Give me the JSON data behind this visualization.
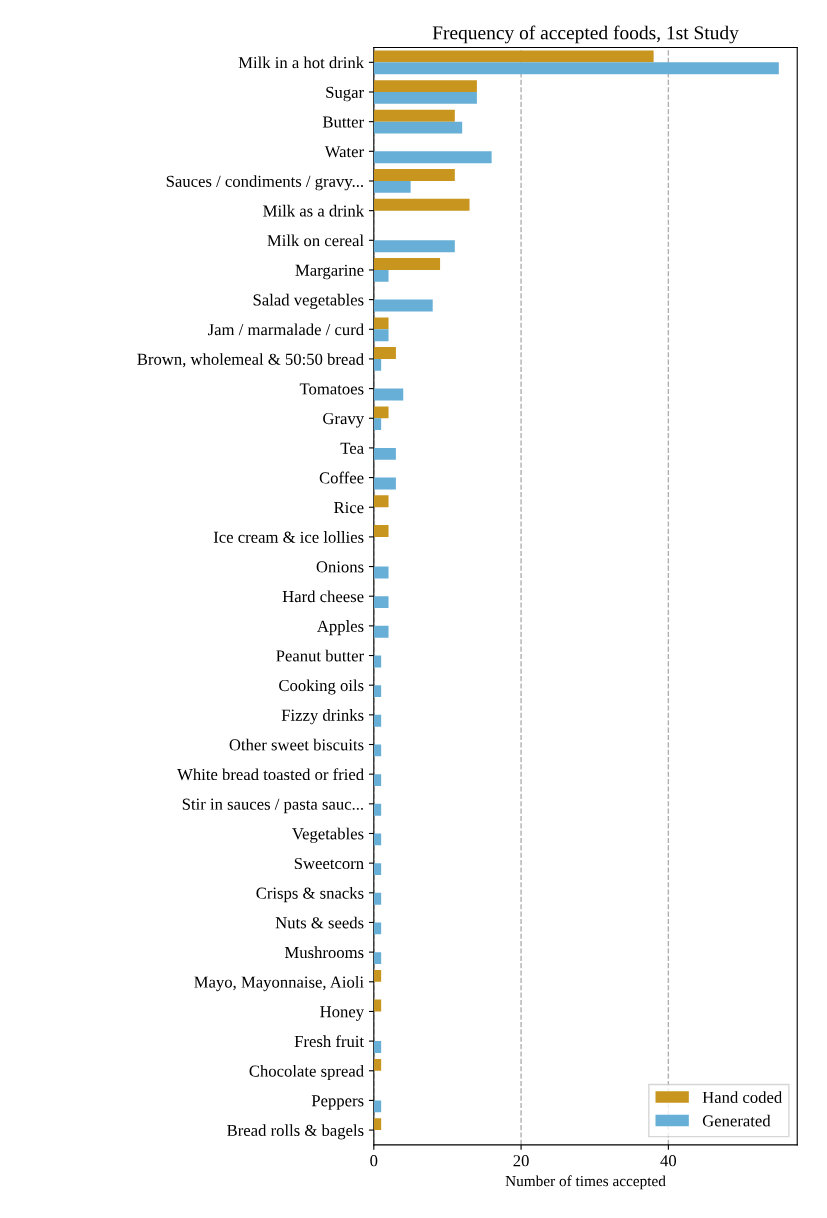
{
  "chart_data": {
    "type": "bar",
    "orientation": "horizontal",
    "title": "Frequency of accepted foods, 1st Study",
    "xlabel": "Number of times accepted",
    "categories": [
      "Milk in a hot drink",
      "Sugar",
      "Butter",
      "Water",
      "Sauces / condiments / gravy...",
      "Milk as a drink",
      "Milk on cereal",
      "Margarine",
      "Salad vegetables",
      "Jam / marmalade / curd",
      "Brown, wholemeal & 50:50 bread",
      "Tomatoes",
      "Gravy",
      "Tea",
      "Coffee",
      "Rice",
      "Ice cream & ice lollies",
      "Onions",
      "Hard cheese",
      "Apples",
      "Peanut butter",
      "Cooking oils",
      "Fizzy drinks",
      "Other sweet biscuits",
      "White bread toasted or fried",
      "Stir in sauces / pasta sauc...",
      "Vegetables",
      "Sweetcorn",
      "Crisps & snacks",
      "Nuts & seeds",
      "Mushrooms",
      "Mayo, Mayonnaise, Aioli",
      "Honey",
      "Fresh fruit",
      "Chocolate spread",
      "Peppers",
      "Bread rolls & bagels"
    ],
    "series": [
      {
        "name": "Hand coded",
        "color": "#c8951f",
        "values": [
          38,
          14,
          11,
          null,
          11,
          13,
          null,
          9,
          null,
          2,
          3,
          null,
          2,
          null,
          null,
          2,
          2,
          null,
          null,
          null,
          null,
          null,
          null,
          null,
          null,
          null,
          null,
          null,
          null,
          null,
          null,
          1,
          1,
          null,
          1,
          null,
          1
        ]
      },
      {
        "name": "Generated",
        "color": "#67afd7",
        "values": [
          55,
          14,
          12,
          16,
          5,
          null,
          11,
          2,
          8,
          2,
          1,
          4,
          1,
          3,
          3,
          null,
          null,
          2,
          2,
          2,
          1,
          1,
          1,
          1,
          1,
          1,
          1,
          1,
          1,
          1,
          1,
          null,
          null,
          1,
          null,
          1,
          null
        ]
      }
    ],
    "xlim": [
      0,
      57.5
    ],
    "xticks": [
      0,
      20,
      40
    ],
    "grid": "x",
    "legend": "bottom right"
  }
}
